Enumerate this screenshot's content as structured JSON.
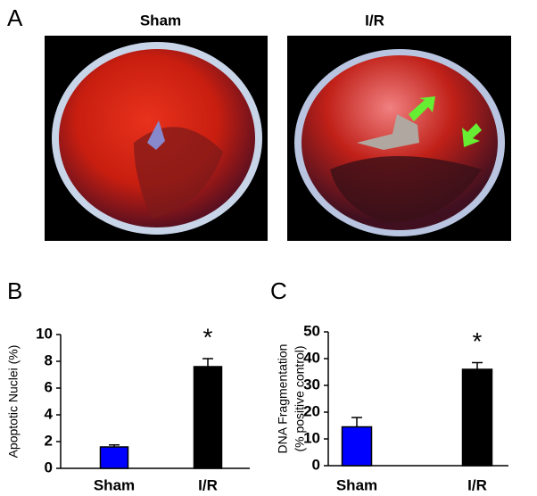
{
  "panel_a": {
    "label": "A",
    "images": [
      {
        "label": "Sham"
      },
      {
        "label": "I/R"
      }
    ]
  },
  "chart_data": [
    {
      "type": "bar",
      "panel_label": "B",
      "ylabel": [
        "Apoptotic Nuclei (%)"
      ],
      "categories": [
        "Sham",
        "I/R"
      ],
      "values": [
        1.6,
        7.6
      ],
      "errors": [
        0.15,
        0.6
      ],
      "colors": [
        "#0000ff",
        "#000000"
      ],
      "annotation_labels": [
        null,
        "*"
      ],
      "ylim": [
        0,
        10
      ],
      "yticks": [
        0,
        2,
        4,
        6,
        8,
        10
      ]
    },
    {
      "type": "bar",
      "panel_label": "C",
      "ylabel": [
        "DNA Fragmentation",
        "(% positive control)"
      ],
      "categories": [
        "Sham",
        "I/R"
      ],
      "values": [
        14.5,
        36
      ],
      "errors": [
        3.5,
        2.5
      ],
      "colors": [
        "#0000ff",
        "#000000"
      ],
      "annotation_labels": [
        null,
        "*"
      ],
      "ylim": [
        0,
        50
      ],
      "yticks": [
        0,
        10,
        20,
        30,
        40,
        50
      ]
    }
  ]
}
